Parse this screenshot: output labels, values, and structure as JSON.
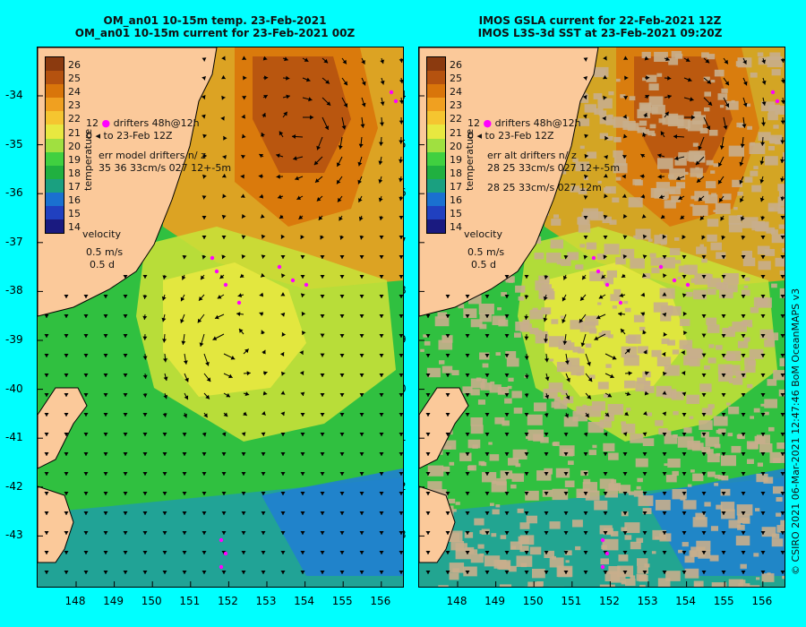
{
  "left": {
    "title1": "OM_an01 10-15m temp. 23-Feb-2021",
    "title2": "OM_an01 10-15m current for 23-Feb-2021 00Z",
    "legend_drifters": "drifters 48h@12h",
    "legend_to": "to 23-Feb 12Z",
    "err_label": "err model drifters n/ z",
    "err_values": "35 36 33cm/s 027 12+-5m",
    "velocity_label": "velocity",
    "velocity_scale": "0.5 m/s",
    "velocity_days": "0.5 d",
    "colorbar_title": "temperature",
    "start_day_glyph": "0",
    "legend_glyph": "12"
  },
  "right": {
    "title1": "IMOS GSLA current for 22-Feb-2021 12Z",
    "title2": "IMOS L3S-3d SST at 23-Feb-2021 09:20Z",
    "legend_drifters": "drifters 48h@12h",
    "legend_to": "to 23-Feb 12Z",
    "err_label": "err alt drifters n/ z",
    "err_values": "28 25 33cm/s 027 12+-5m",
    "err_values2": "28 25 33cm/s 027 12m",
    "velocity_label": "velocity",
    "velocity_scale": "0.5 m/s",
    "velocity_days": "0.5 d",
    "colorbar_title": "temperature",
    "start_day_glyph": "0",
    "legend_glyph": "12"
  },
  "colorbar": {
    "ticks": [
      "26",
      "25",
      "24",
      "23",
      "22",
      "21",
      "20",
      "19",
      "18",
      "17",
      "16",
      "15",
      "14"
    ],
    "colors": [
      "#8b3a0f",
      "#b5520f",
      "#d9750a",
      "#f0a020",
      "#f5c530",
      "#e8e840",
      "#a0e040",
      "#40d040",
      "#20b040",
      "#1aa080",
      "#1a70d0",
      "#2040c0",
      "#1a1a80"
    ]
  },
  "axes": {
    "lat_labels": [
      "-34",
      "-35",
      "-36",
      "-37",
      "-38",
      "-39",
      "-40",
      "-41",
      "-42",
      "-43"
    ],
    "lon_labels": [
      "148",
      "149",
      "150",
      "151",
      "152",
      "153",
      "154",
      "155",
      "156"
    ]
  },
  "credit": "© CSIRO 2021   06-Mar-2021 12:47:46 BoM OceanMAPS v3",
  "colors": {
    "background": "#00ffff",
    "land": "#fbc99a",
    "drifter": "#ff00ff",
    "cloud": "#c8ae8c"
  }
}
